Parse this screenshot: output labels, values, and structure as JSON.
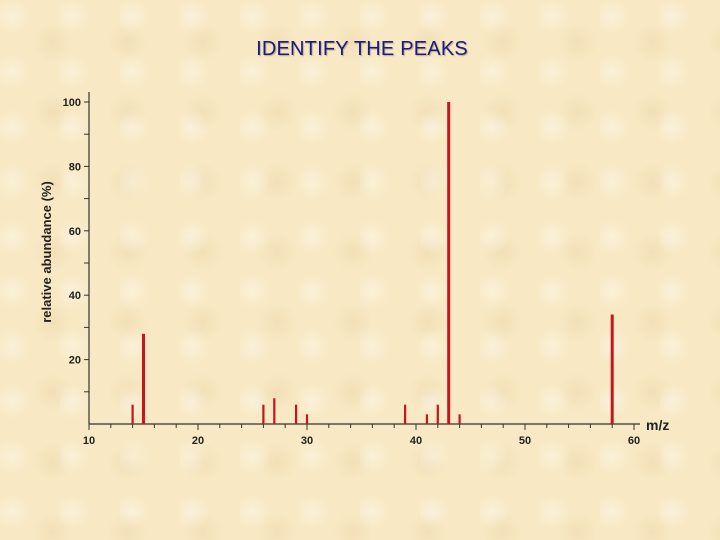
{
  "title": "IDENTIFY THE PEAKS",
  "chart_data": {
    "type": "bar",
    "title": "IDENTIFY THE PEAKS",
    "xlabel": "m/z",
    "ylabel": "relative abundance (%)",
    "xlim": [
      10,
      60
    ],
    "ylim": [
      0,
      100
    ],
    "x_ticks": [
      10,
      20,
      30,
      40,
      50,
      60
    ],
    "y_ticks": [
      20,
      40,
      60,
      80,
      100
    ],
    "peaks": [
      {
        "mz": 14,
        "abundance": 6
      },
      {
        "mz": 15,
        "abundance": 28
      },
      {
        "mz": 26,
        "abundance": 6
      },
      {
        "mz": 27,
        "abundance": 8
      },
      {
        "mz": 29,
        "abundance": 6
      },
      {
        "mz": 30,
        "abundance": 3
      },
      {
        "mz": 39,
        "abundance": 6
      },
      {
        "mz": 41,
        "abundance": 3
      },
      {
        "mz": 42,
        "abundance": 6
      },
      {
        "mz": 43,
        "abundance": 100
      },
      {
        "mz": 44,
        "abundance": 3
      },
      {
        "mz": 58,
        "abundance": 34
      }
    ],
    "grid": false,
    "bar_color": "#c8141e"
  }
}
